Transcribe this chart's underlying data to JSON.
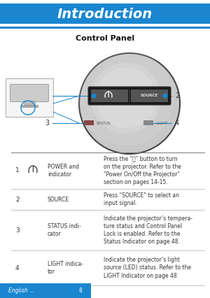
{
  "title": "Introduction",
  "subtitle": "Control Panel",
  "title_bg": "#1a86d0",
  "title_stripe_top": "#5ab0f0",
  "title_stripe_bot": "#5ab0f0",
  "title_text_color": "#ffffff",
  "page_bg": "#ffffff",
  "footer_bg": "#1a86d0",
  "blue": "#1a86d0",
  "table_rows": [
    {
      "num": "1",
      "has_icon": true,
      "name": "POWER and\nindicator",
      "desc": "Press the \"⒨\" button to turn\non the projector. Refer to the\n\"Power On/Off the Projector\"\nsection on pages 14-15."
    },
    {
      "num": "2",
      "has_icon": false,
      "name": "SOURCE",
      "desc": "Press \"SOURCE\" to select an\ninput signal."
    },
    {
      "num": "3",
      "has_icon": false,
      "name": "STATUS indi-\ncator",
      "desc": "Indicate the projector’s tempera-\nture status and Control Panel\nLock is enabled. Refer to the\nStatus Indicator on page 48."
    },
    {
      "num": "4",
      "has_icon": false,
      "name": "LIGHT indica-\ntor",
      "desc": "Indicate the projector’s light\nsource (LED) status. Refer to the\nLIGHT Indicator on page 48."
    }
  ]
}
